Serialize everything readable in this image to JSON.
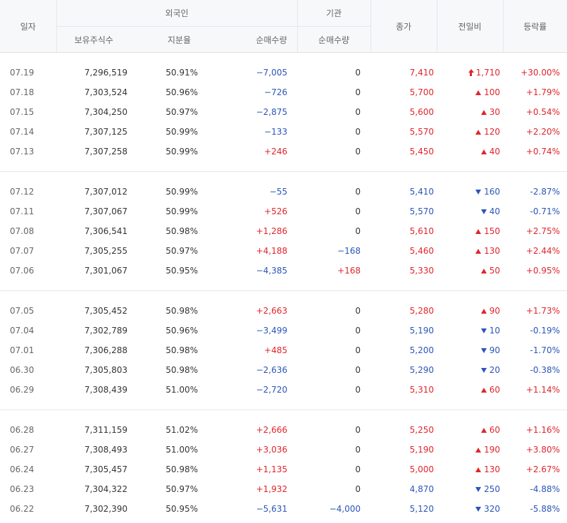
{
  "header": {
    "date": "일자",
    "foreign": "외국인",
    "institution": "기관",
    "close": "종가",
    "change": "전일비",
    "rate": "등락률",
    "foreign_holdings": "보유주식수",
    "foreign_ratio": "지분율",
    "foreign_net": "순매수량",
    "inst_net": "순매수량"
  },
  "groups": [
    [
      {
        "date": "07.19",
        "holdings": "7,296,519",
        "ratio": "50.91%",
        "f_net": "−7,005",
        "i_net": "0",
        "close": "7,410",
        "chg": "1,710",
        "dir": "upper",
        "rate": "+30.00%"
      },
      {
        "date": "07.18",
        "holdings": "7,303,524",
        "ratio": "50.96%",
        "f_net": "−726",
        "i_net": "0",
        "close": "5,700",
        "chg": "100",
        "dir": "up",
        "rate": "+1.79%"
      },
      {
        "date": "07.15",
        "holdings": "7,304,250",
        "ratio": "50.97%",
        "f_net": "−2,875",
        "i_net": "0",
        "close": "5,600",
        "chg": "30",
        "dir": "up",
        "rate": "+0.54%"
      },
      {
        "date": "07.14",
        "holdings": "7,307,125",
        "ratio": "50.99%",
        "f_net": "−133",
        "i_net": "0",
        "close": "5,570",
        "chg": "120",
        "dir": "up",
        "rate": "+2.20%"
      },
      {
        "date": "07.13",
        "holdings": "7,307,258",
        "ratio": "50.99%",
        "f_net": "+246",
        "i_net": "0",
        "close": "5,450",
        "chg": "40",
        "dir": "up",
        "rate": "+0.74%"
      }
    ],
    [
      {
        "date": "07.12",
        "holdings": "7,307,012",
        "ratio": "50.99%",
        "f_net": "−55",
        "i_net": "0",
        "close": "5,410",
        "chg": "160",
        "dir": "down",
        "rate": "-2.87%"
      },
      {
        "date": "07.11",
        "holdings": "7,307,067",
        "ratio": "50.99%",
        "f_net": "+526",
        "i_net": "0",
        "close": "5,570",
        "chg": "40",
        "dir": "down",
        "rate": "-0.71%"
      },
      {
        "date": "07.08",
        "holdings": "7,306,541",
        "ratio": "50.98%",
        "f_net": "+1,286",
        "i_net": "0",
        "close": "5,610",
        "chg": "150",
        "dir": "up",
        "rate": "+2.75%"
      },
      {
        "date": "07.07",
        "holdings": "7,305,255",
        "ratio": "50.97%",
        "f_net": "+4,188",
        "i_net": "−168",
        "close": "5,460",
        "chg": "130",
        "dir": "up",
        "rate": "+2.44%"
      },
      {
        "date": "07.06",
        "holdings": "7,301,067",
        "ratio": "50.95%",
        "f_net": "−4,385",
        "i_net": "+168",
        "close": "5,330",
        "chg": "50",
        "dir": "up",
        "rate": "+0.95%"
      }
    ],
    [
      {
        "date": "07.05",
        "holdings": "7,305,452",
        "ratio": "50.98%",
        "f_net": "+2,663",
        "i_net": "0",
        "close": "5,280",
        "chg": "90",
        "dir": "up",
        "rate": "+1.73%"
      },
      {
        "date": "07.04",
        "holdings": "7,302,789",
        "ratio": "50.96%",
        "f_net": "−3,499",
        "i_net": "0",
        "close": "5,190",
        "chg": "10",
        "dir": "down",
        "rate": "-0.19%"
      },
      {
        "date": "07.01",
        "holdings": "7,306,288",
        "ratio": "50.98%",
        "f_net": "+485",
        "i_net": "0",
        "close": "5,200",
        "chg": "90",
        "dir": "down",
        "rate": "-1.70%"
      },
      {
        "date": "06.30",
        "holdings": "7,305,803",
        "ratio": "50.98%",
        "f_net": "−2,636",
        "i_net": "0",
        "close": "5,290",
        "chg": "20",
        "dir": "down",
        "rate": "-0.38%"
      },
      {
        "date": "06.29",
        "holdings": "7,308,439",
        "ratio": "51.00%",
        "f_net": "−2,720",
        "i_net": "0",
        "close": "5,310",
        "chg": "60",
        "dir": "up",
        "rate": "+1.14%"
      }
    ],
    [
      {
        "date": "06.28",
        "holdings": "7,311,159",
        "ratio": "51.02%",
        "f_net": "+2,666",
        "i_net": "0",
        "close": "5,250",
        "chg": "60",
        "dir": "up",
        "rate": "+1.16%"
      },
      {
        "date": "06.27",
        "holdings": "7,308,493",
        "ratio": "51.00%",
        "f_net": "+3,036",
        "i_net": "0",
        "close": "5,190",
        "chg": "190",
        "dir": "up",
        "rate": "+3.80%"
      },
      {
        "date": "06.24",
        "holdings": "7,305,457",
        "ratio": "50.98%",
        "f_net": "+1,135",
        "i_net": "0",
        "close": "5,000",
        "chg": "130",
        "dir": "up",
        "rate": "+2.67%"
      },
      {
        "date": "06.23",
        "holdings": "7,304,322",
        "ratio": "50.97%",
        "f_net": "+1,932",
        "i_net": "0",
        "close": "4,870",
        "chg": "250",
        "dir": "down",
        "rate": "-4.88%"
      },
      {
        "date": "06.22",
        "holdings": "7,302,390",
        "ratio": "50.95%",
        "f_net": "−5,631",
        "i_net": "−4,000",
        "close": "5,120",
        "chg": "320",
        "dir": "down",
        "rate": "-5.88%"
      }
    ]
  ],
  "colors": {
    "up": "#e0242b",
    "down": "#2a55b8",
    "neutral": "#333333",
    "header_bg": "#f7f8fa"
  },
  "icons": {
    "upper": "upper-limit-arrow-icon",
    "up": "up-triangle-icon",
    "down": "down-triangle-icon"
  }
}
